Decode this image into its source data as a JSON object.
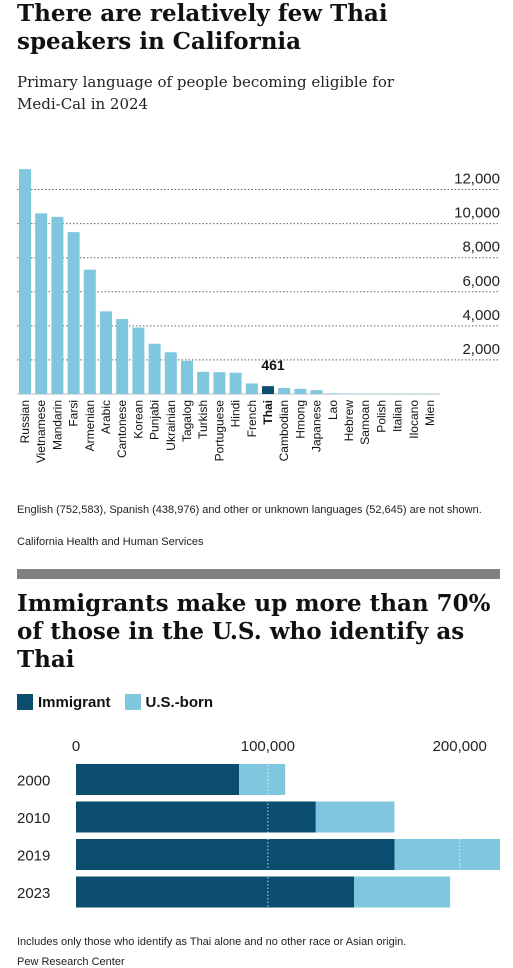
{
  "chart1": {
    "title": "There are relatively few Thai speakers in California",
    "subtitle": "Primary language of people becoming eligible for Medi-Cal in 2024",
    "note": "English (752,583), Spanish (438,976) and other or unknown languages (52,645) are not shown.",
    "source": "California Health and Human Services",
    "chart_data": {
      "type": "bar",
      "categories": [
        "Russian",
        "Vietnamese",
        "Mandarin",
        "Farsi",
        "Armenian",
        "Arabic",
        "Cantonese",
        "Korean",
        "Punjabi",
        "Ukrainian",
        "Tagalog",
        "Turkish",
        "Portuguese",
        "Hindi",
        "French",
        "Thai",
        "Cambodian",
        "Hmong",
        "Japanese",
        "Lao",
        "Hebrew",
        "Samoan",
        "Polish",
        "Italian",
        "Ilocano",
        "Mien"
      ],
      "values": [
        13200,
        10600,
        10400,
        9500,
        7300,
        4850,
        4400,
        3900,
        2950,
        2450,
        1950,
        1300,
        1280,
        1250,
        620,
        461,
        350,
        300,
        230,
        40,
        30,
        25,
        20,
        15,
        10,
        8
      ],
      "highlight": "Thai",
      "annotation": "461",
      "yticks": [
        "12,000",
        "10,000",
        "8,000",
        "6,000",
        "4,000",
        "2,000"
      ],
      "ytick_values": [
        12000,
        10000,
        8000,
        6000,
        4000,
        2000
      ],
      "ylim": [
        0,
        13500
      ],
      "grid": true,
      "colors": {
        "bar": "#7fc6df",
        "highlight": "#0b4d6e",
        "grid": "#666666"
      }
    }
  },
  "chart2": {
    "title": "Immigrants make up more than 70% of those in the U.S. who identify as Thai",
    "note": "Includes only those who identify as Thai alone and no other race or Asian origin.",
    "source": "Pew Research Center",
    "chart_data": {
      "type": "bar",
      "orientation": "horizontal",
      "stacked": true,
      "categories": [
        "2000",
        "2010",
        "2019",
        "2023"
      ],
      "series": [
        {
          "name": "Immigrant",
          "values": [
            85000,
            125000,
            166000,
            145000
          ],
          "color": "#0b4d6e"
        },
        {
          "name": "U.S.-born",
          "values": [
            24000,
            41000,
            55000,
            50000
          ],
          "color": "#7fc6df"
        }
      ],
      "xticks": [
        "0",
        "100,000",
        "200,000"
      ],
      "xtick_values": [
        0,
        100000,
        200000
      ],
      "xlim": [
        0,
        221000
      ],
      "legend": "top-left",
      "grid": true
    }
  }
}
